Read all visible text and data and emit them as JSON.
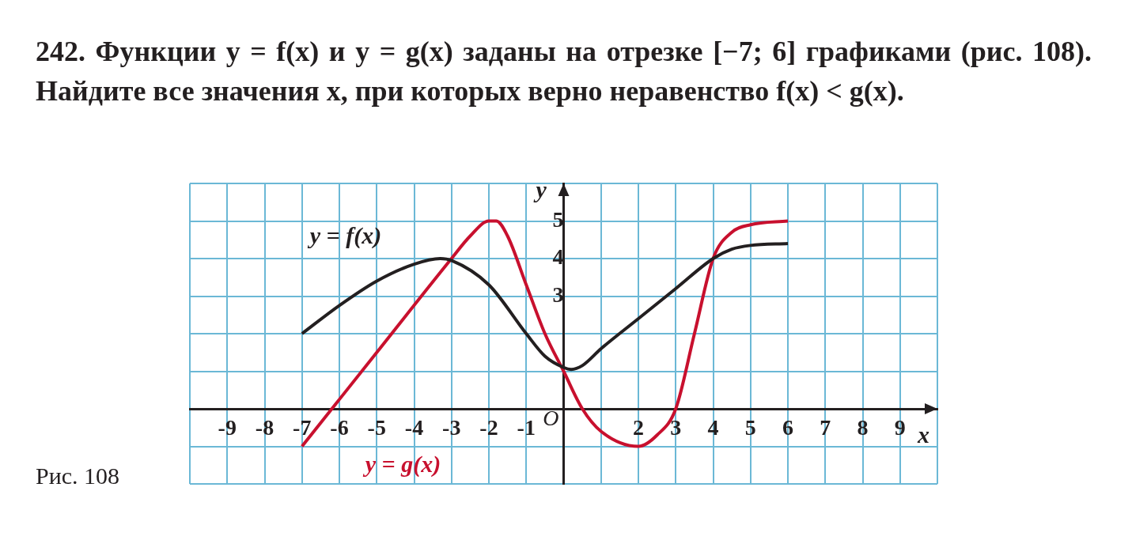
{
  "chart_data": {
    "type": "line",
    "title": "242. Функции y = f(x) и y = g(x) заданы на отрезке [−7; 6] графиками (рис. 108). Найдите все значения x, при которых верно неравенство f(x) < g(x).",
    "xlabel": "x",
    "ylabel": "y",
    "xlim": [
      -10,
      10
    ],
    "ylim": [
      -2,
      6
    ],
    "xticks": [
      {
        "value": -10,
        "label": null
      },
      -9,
      -8,
      -7,
      -6,
      -5,
      -4,
      -3,
      -2,
      -1,
      {
        "value": 0,
        "label": null
      },
      {
        "value": 1,
        "label": null
      },
      2,
      3,
      4,
      5,
      6,
      7,
      8,
      9,
      {
        "value": 10,
        "label": null
      }
    ],
    "yticks": [
      {
        "value": -2,
        "label": null
      },
      {
        "value": -1,
        "label": null
      },
      {
        "value": 0,
        "label": null
      },
      {
        "value": 1,
        "label": null
      },
      {
        "value": 2,
        "label": null
      },
      3,
      4,
      5,
      {
        "value": 6,
        "label": null
      }
    ],
    "grid": true,
    "legend": false,
    "marker": "none",
    "line_style": "solid",
    "series": [
      {
        "name": "y = f(x)",
        "color": "#231f20",
        "x": [
          -7,
          -6,
          -5,
          -4,
          -3.3,
          -3,
          -2,
          -1,
          -0.5,
          0,
          0.2,
          0.5,
          1,
          2,
          3,
          4,
          4.5,
          5,
          6
        ],
        "values": [
          2,
          2.75,
          3.4,
          3.85,
          4,
          3.95,
          3.3,
          2,
          1.4,
          1.1,
          1.05,
          1.15,
          1.6,
          2.4,
          3.2,
          4,
          4.25,
          4.35,
          4.4
        ]
      },
      {
        "name": "y = g(x)",
        "color": "#c8102e",
        "x": [
          -7,
          -5,
          -3,
          -2.5,
          -2,
          -1.8,
          -1.5,
          -1,
          -0.5,
          0,
          0.5,
          1,
          2,
          2.5,
          3,
          3.5,
          4,
          4.5,
          5,
          6
        ],
        "values": [
          -1,
          1.5,
          4,
          4.6,
          5,
          5,
          4.6,
          3.3,
          2,
          1,
          0,
          -0.6,
          -1,
          -0.7,
          0,
          2,
          4,
          4.7,
          4.9,
          5
        ]
      }
    ],
    "annotations": [
      "O",
      "Рис. 108"
    ]
  }
}
